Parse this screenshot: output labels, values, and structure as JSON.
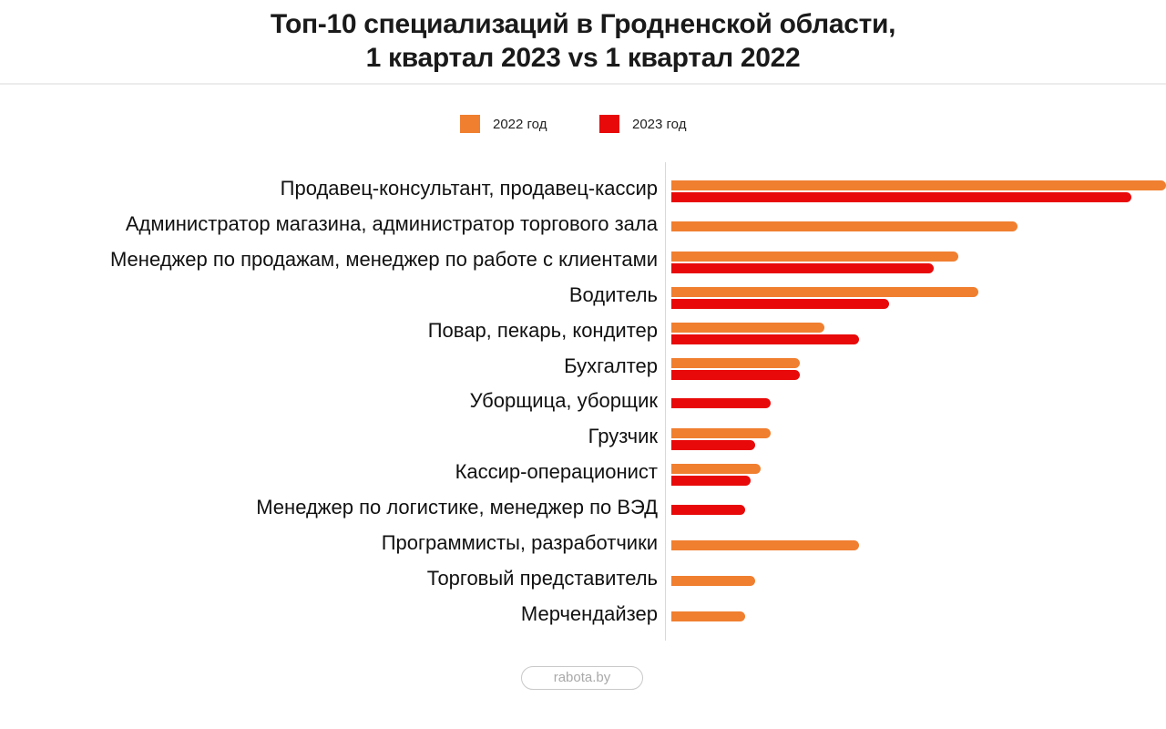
{
  "chart_data": {
    "type": "bar",
    "orientation": "horizontal",
    "title": [
      "Топ-10 специализаций в Гродненской области,",
      "1 квартал 2023 vs 1 квартал 2022"
    ],
    "xlabel": "",
    "ylabel": "",
    "xlim": [
      0,
      100
    ],
    "grid": false,
    "legend_position": "top-center",
    "value_units": "relative (no numeric axis shown; estimated from bar length, longest bar = 100)",
    "categories": [
      "Продавец-консультант, продавец-кассир",
      "Администратор магазина, администратор торгового зала",
      "Менеджер по продажам, менеджер по работе с клиентами",
      "Водитель",
      "Повар, пекарь, кондитер ",
      "Бухгалтер",
      "Уборщица, уборщик",
      "Грузчик",
      "Кассир-операционист ",
      "Менеджер по логистике, менеджер по ВЭД",
      "Программисты, разработчики",
      "Торговый представитель",
      "Мерчендайзер"
    ],
    "series": [
      {
        "name": "2022 год",
        "color": "#f07f30",
        "values": [
          100,
          70,
          58,
          62,
          31,
          26,
          null,
          20,
          18,
          null,
          38,
          17,
          15
        ]
      },
      {
        "name": "2023 год",
        "color": "#e80a0a",
        "values": [
          93,
          null,
          53,
          44,
          38,
          26,
          20,
          17,
          16,
          15,
          null,
          null,
          null
        ]
      }
    ]
  },
  "legend": [
    {
      "label": "2022 год",
      "color": "#f07f30"
    },
    {
      "label": "2023 год",
      "color": "#e80a0a"
    }
  ],
  "footer": {
    "source": "rabota.by"
  }
}
